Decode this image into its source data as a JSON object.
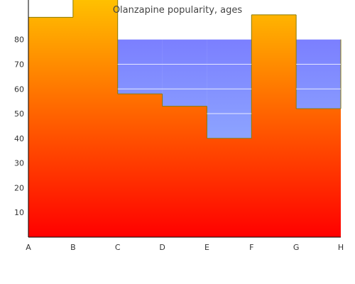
{
  "chart_data": {
    "type": "area",
    "title": "Olanzapine popularity, ages",
    "xlabel": "",
    "ylabel": "",
    "categories": [
      "A",
      "B",
      "C",
      "D",
      "E",
      "F",
      "G",
      "H"
    ],
    "ylim": [
      0,
      96
    ],
    "yticks": [
      10,
      20,
      30,
      40,
      50,
      60,
      70,
      80
    ],
    "grid": true,
    "legend": "none",
    "series": [
      {
        "values": [
          89,
          100,
          58,
          53,
          40,
          90,
          52,
          80
        ]
      },
      {
        "values": [
          null,
          null,
          80,
          80,
          80,
          null,
          80,
          null
        ]
      }
    ],
    "colors": {
      "series1_top": "#ffc800",
      "series1_bottom": "#ff0000",
      "series1_outline": "#8a7a00",
      "series2_top": "#7b7fff",
      "series2_bottom": "#9ec8ff",
      "gridline": "#ffffff",
      "axis": "#000000"
    }
  }
}
